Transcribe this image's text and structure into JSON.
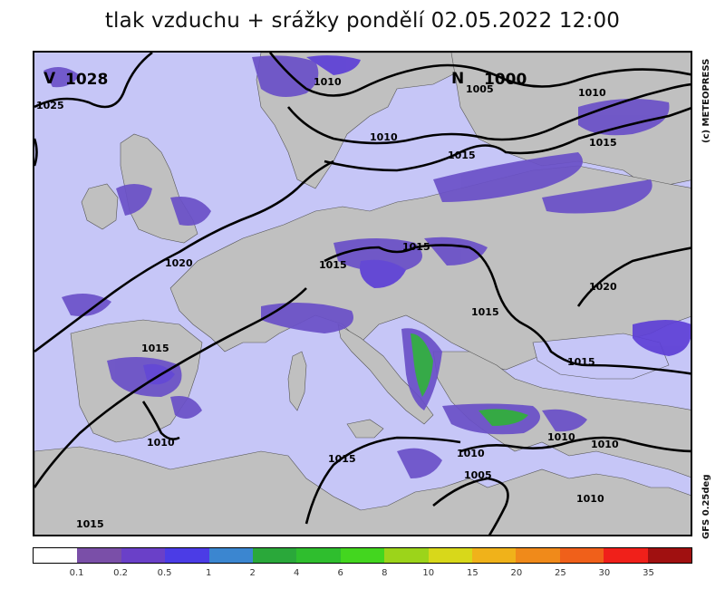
{
  "title": "tlak vzduchu + srážky pondělí 02.05.2022 12:00",
  "copyright": "(c) METEOPRESS",
  "model": "GFS 0.25deg",
  "colors": {
    "sea": "#c6c6f7",
    "land": "#c0c0c0",
    "rain_light": "#6a50c8",
    "rain_mid": "#5d3fd6",
    "rain_green": "#2aa83a"
  },
  "pressure_centers": [
    {
      "type": "high",
      "symbol": "V",
      "value": "1028"
    },
    {
      "type": "low",
      "symbol": "N",
      "value": "1000"
    }
  ],
  "isobar_labels": [
    "1025",
    "1010",
    "1005",
    "1010",
    "1010",
    "1015",
    "1015",
    "1020",
    "1015",
    "1015",
    "1015",
    "1020",
    "1015",
    "1015",
    "1010",
    "1015",
    "1010",
    "1010",
    "1005",
    "1010",
    "1015",
    "1010"
  ],
  "legend": {
    "colors": [
      "#ffffff",
      "#7a4fa8",
      "#6a40c8",
      "#4b3ce6",
      "#3b86d0",
      "#2aa83a",
      "#2fbe2e",
      "#43d61f",
      "#9cd41a",
      "#d8d81a",
      "#f0b21a",
      "#f08a1a",
      "#f0601a",
      "#f0201a",
      "#a01010"
    ],
    "labels": [
      "0.1",
      "0.2",
      "0.5",
      "1",
      "2",
      "4",
      "6",
      "8",
      "10",
      "15",
      "20",
      "25",
      "30",
      "35"
    ]
  }
}
